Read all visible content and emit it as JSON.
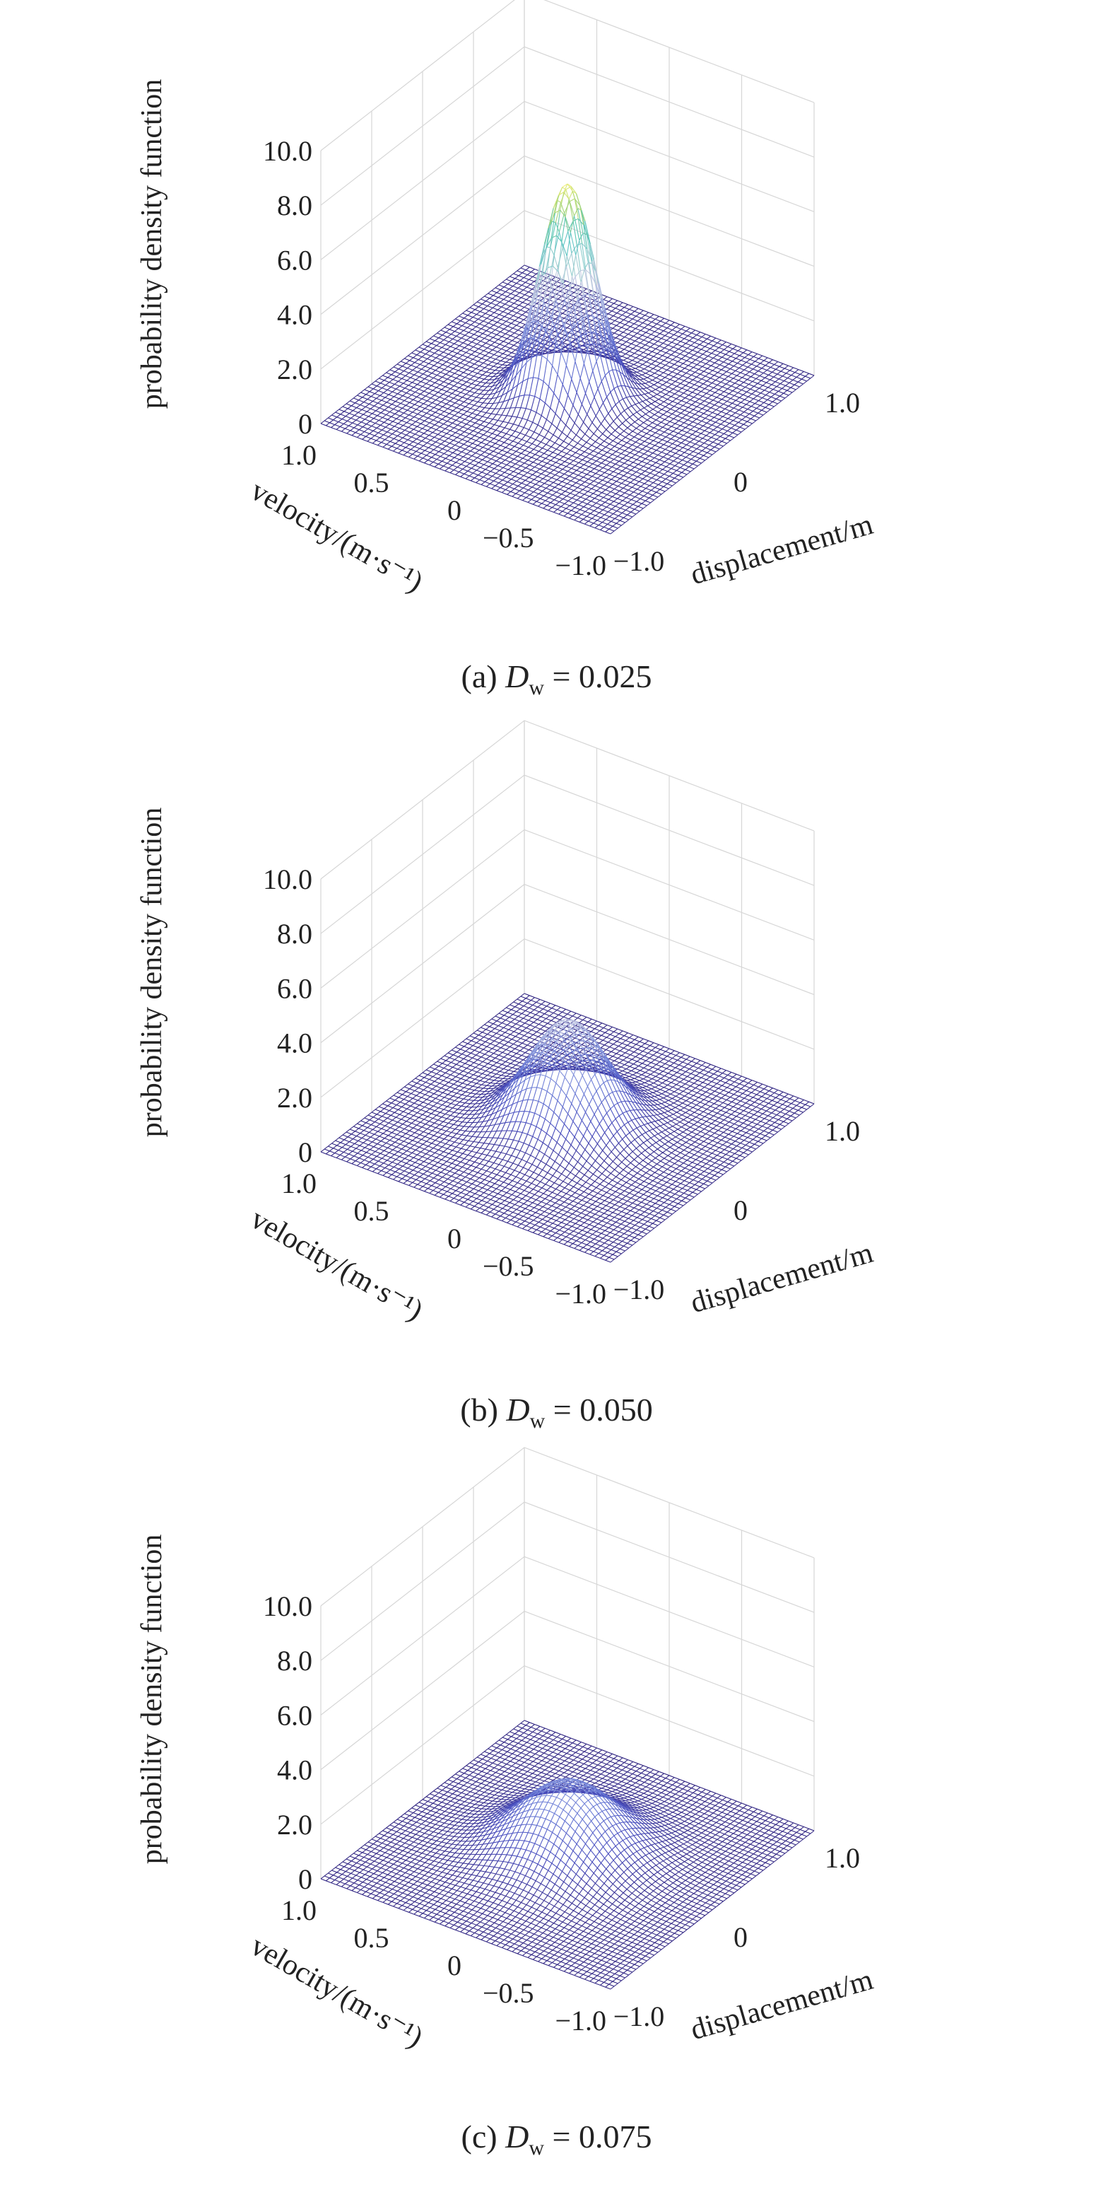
{
  "chart_data": [
    {
      "type": "surface",
      "caption": {
        "label": "(a)",
        "var": "D",
        "sub": "w",
        "rest": " = 0.025"
      },
      "zlabel": "probability density function",
      "xlabel": "displacement/m",
      "ylabel": "velocity/(m·s⁻¹)",
      "zticks": [
        "0",
        "2.0",
        "4.0",
        "6.0",
        "8.0",
        "10.0"
      ],
      "xticks": [
        "−1.0",
        "0",
        "1.0"
      ],
      "yticks": [
        "1.0",
        "0.5",
        "0",
        "−0.5",
        "−1.0"
      ],
      "zlim": [
        0,
        10
      ],
      "xlim": [
        -1,
        1
      ],
      "ylim": [
        -1,
        1
      ],
      "peak": 7.9,
      "sigma_x": 0.16,
      "sigma_v": 0.16
    },
    {
      "type": "surface",
      "caption": {
        "label": "(b)",
        "var": "D",
        "sub": "w",
        "rest": " = 0.050"
      },
      "zlabel": "probability density function",
      "xlabel": "displacement/m",
      "ylabel": "velocity/(m·s⁻¹)",
      "zticks": [
        "0",
        "2.0",
        "4.0",
        "6.0",
        "8.0",
        "10.0"
      ],
      "xticks": [
        "−1.0",
        "0",
        "1.0"
      ],
      "yticks": [
        "1.0",
        "0.5",
        "0",
        "−0.5",
        "−1.0"
      ],
      "zlim": [
        0,
        10
      ],
      "xlim": [
        -1,
        1
      ],
      "ylim": [
        -1,
        1
      ],
      "peak": 3.9,
      "sigma_x": 0.23,
      "sigma_v": 0.23
    },
    {
      "type": "surface",
      "caption": {
        "label": "(c)",
        "var": "D",
        "sub": "w",
        "rest": " = 0.075"
      },
      "zlabel": "probability density function",
      "xlabel": "displacement/m",
      "ylabel": "velocity/(m·s⁻¹)",
      "zticks": [
        "0",
        "2.0",
        "4.0",
        "6.0",
        "8.0",
        "10.0"
      ],
      "xticks": [
        "−1.0",
        "0",
        "1.0"
      ],
      "yticks": [
        "1.0",
        "0.5",
        "0",
        "−0.5",
        "−1.0"
      ],
      "zlim": [
        0,
        10
      ],
      "xlim": [
        -1,
        1
      ],
      "ylim": [
        -1,
        1
      ],
      "peak": 2.6,
      "sigma_x": 0.28,
      "sigma_v": 0.28
    }
  ],
  "colors": {
    "colormap": [
      "#352a87",
      "#4a4fbf",
      "#6a7bd6",
      "#9aa8e0",
      "#c8cce4",
      "#9ccfd0",
      "#4ec3c0",
      "#a9d77a",
      "#f6f17a"
    ],
    "grid": "#d6d6d6",
    "text": "#222222"
  }
}
